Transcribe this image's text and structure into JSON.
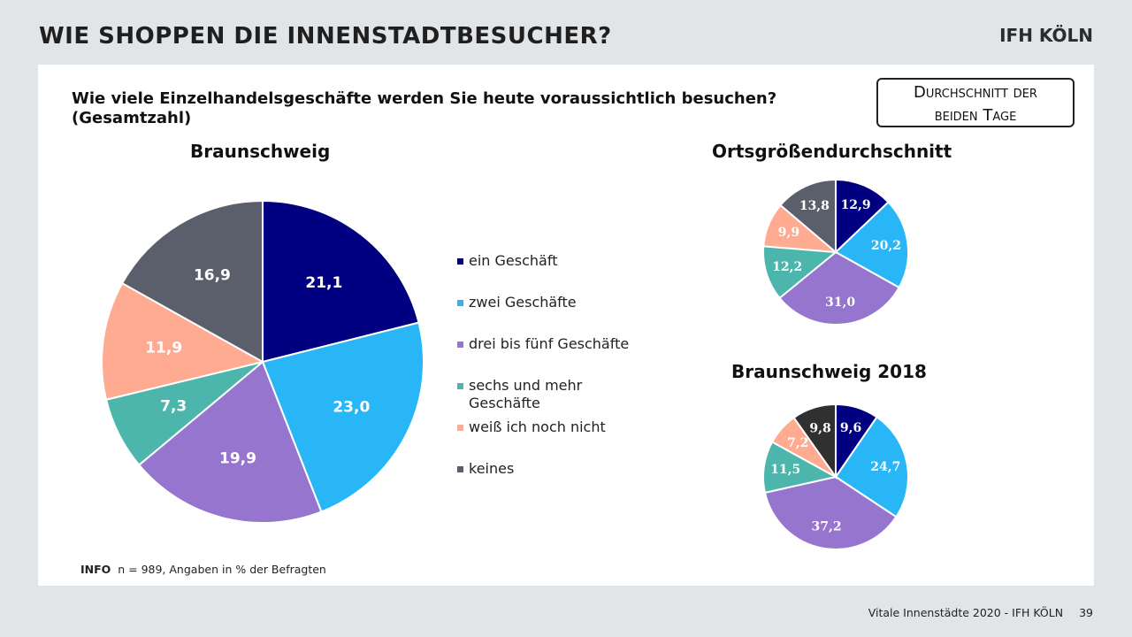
{
  "slide": {
    "title": "WIE SHOPPEN DIE INNENSTADTBESUCHER?",
    "logo": "IFH KÖLN",
    "question": "Wie viele Einzelhandelsgeschäfte werden Sie heute voraussichtlich besuchen? (Gesamtzahl)",
    "avg_box": {
      "line1": "Durchschnitt der",
      "line2": "beiden Tage"
    },
    "info_label": "INFO",
    "info_text": "n = 989, Angaben in % der Befragten",
    "footer_text": "Vitale Innenstädte 2020 - IFH KÖLN",
    "page_number": "39"
  },
  "legend": [
    {
      "label": "ein Geschäft",
      "color": "#000080"
    },
    {
      "label": "zwei Geschäfte",
      "color": "#29b6f6"
    },
    {
      "label": "drei bis fünf Geschäfte",
      "color": "#9575cd"
    },
    {
      "label": "sechs und mehr Geschäfte",
      "color": "#4db6ac"
    },
    {
      "label": "weiß ich noch nicht",
      "color": "#ffab91"
    },
    {
      "label": "keines",
      "color": "#5a5f6b"
    }
  ],
  "chart_data": [
    {
      "type": "pie",
      "title": "Braunschweig",
      "categories": [
        "ein Geschäft",
        "zwei Geschäfte",
        "drei bis fünf Geschäfte",
        "sechs und mehr Geschäfte",
        "weiß ich noch nicht",
        "keines"
      ],
      "values": [
        21.1,
        23.0,
        19.9,
        7.3,
        11.9,
        16.9
      ],
      "labels": [
        "21,1",
        "23,0",
        "19,9",
        "7,3",
        "11,9",
        "16,9"
      ],
      "colors": [
        "#000080",
        "#29b6f6",
        "#9575cd",
        "#4db6ac",
        "#ffab91",
        "#5a5f6b"
      ]
    },
    {
      "type": "pie",
      "title": "Ortsgrößendurchschnitt",
      "categories": [
        "ein Geschäft",
        "zwei Geschäfte",
        "drei bis fünf Geschäfte",
        "sechs und mehr Geschäfte",
        "weiß ich noch nicht",
        "keines"
      ],
      "values": [
        12.9,
        20.2,
        31.0,
        12.2,
        9.9,
        13.8
      ],
      "labels": [
        "12,9",
        "20,2",
        "31,0",
        "12,2",
        "9,9",
        "13,8"
      ],
      "colors": [
        "#000080",
        "#29b6f6",
        "#9575cd",
        "#4db6ac",
        "#ffab91",
        "#5a5f6b"
      ]
    },
    {
      "type": "pie",
      "title": "Braunschweig  2018",
      "categories": [
        "ein Geschäft",
        "zwei Geschäfte",
        "drei bis fünf Geschäfte",
        "sechs und mehr Geschäfte",
        "weiß ich noch nicht",
        "keines"
      ],
      "values": [
        9.6,
        24.7,
        37.2,
        11.5,
        7.2,
        9.8
      ],
      "labels": [
        "9,6",
        "24,7",
        "37,2",
        "11,5",
        "7,2",
        "9,8"
      ],
      "colors": [
        "#000080",
        "#29b6f6",
        "#9575cd",
        "#4db6ac",
        "#ffab91",
        "#303030"
      ]
    }
  ]
}
